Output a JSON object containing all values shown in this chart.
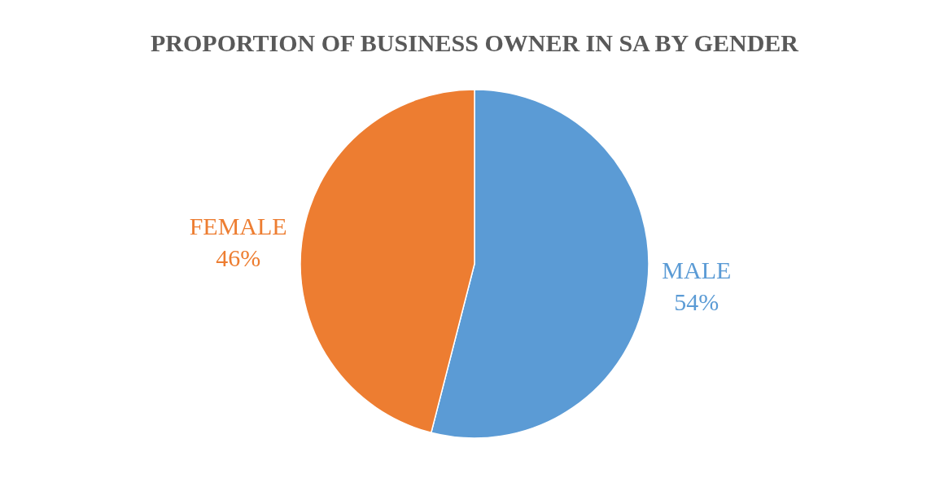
{
  "chart_data": {
    "type": "pie",
    "title": "PROPORTION OF BUSINESS OWNER IN SA BY GENDER",
    "categories": [
      "MALE",
      "FEMALE"
    ],
    "values": [
      54,
      46
    ],
    "value_labels": [
      "54%",
      "46%"
    ],
    "colors": [
      "#5b9bd5",
      "#ed7d31"
    ],
    "legend": false
  }
}
